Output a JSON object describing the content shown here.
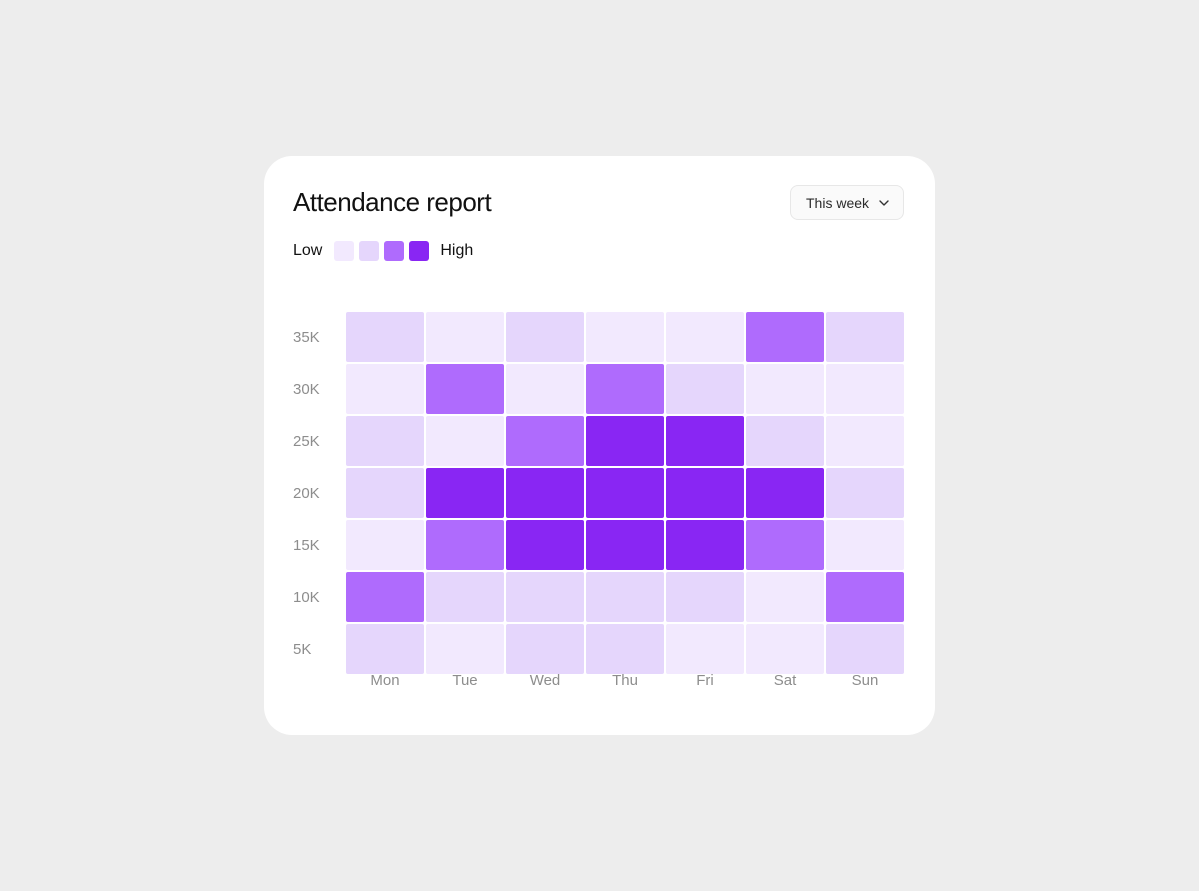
{
  "card": {
    "title": "Attendance report",
    "period_select": {
      "value": "This week",
      "icon": "chevron-down-icon"
    }
  },
  "legend": {
    "low_label": "Low",
    "high_label": "High",
    "levels": [
      {
        "level": 1,
        "color": "#f2e9fe"
      },
      {
        "level": 2,
        "color": "#e5d6fc"
      },
      {
        "level": 3,
        "color": "#af6bfd"
      },
      {
        "level": 4,
        "color": "#8926f3"
      }
    ]
  },
  "chart_data": {
    "type": "heatmap",
    "title": "Attendance report",
    "x": [
      "Mon",
      "Tue",
      "Wed",
      "Thu",
      "Fri",
      "Sat",
      "Sun"
    ],
    "y": [
      "35K",
      "30K",
      "25K",
      "20K",
      "15K",
      "10K",
      "5K"
    ],
    "scale": "ordinal levels 1 (Low) to 4 (High)",
    "colors": {
      "1": "#f2e9fe",
      "2": "#e5d6fc",
      "3": "#af6bfd",
      "4": "#8926f3"
    },
    "values": [
      [
        2,
        1,
        2,
        1,
        1,
        3,
        2
      ],
      [
        1,
        3,
        1,
        3,
        2,
        1,
        1
      ],
      [
        2,
        1,
        3,
        4,
        4,
        2,
        1
      ],
      [
        2,
        4,
        4,
        4,
        4,
        4,
        2
      ],
      [
        1,
        3,
        4,
        4,
        4,
        3,
        1
      ],
      [
        3,
        2,
        2,
        2,
        2,
        1,
        3
      ],
      [
        2,
        1,
        2,
        2,
        1,
        1,
        2
      ]
    ],
    "legend_placement": "top-left"
  }
}
